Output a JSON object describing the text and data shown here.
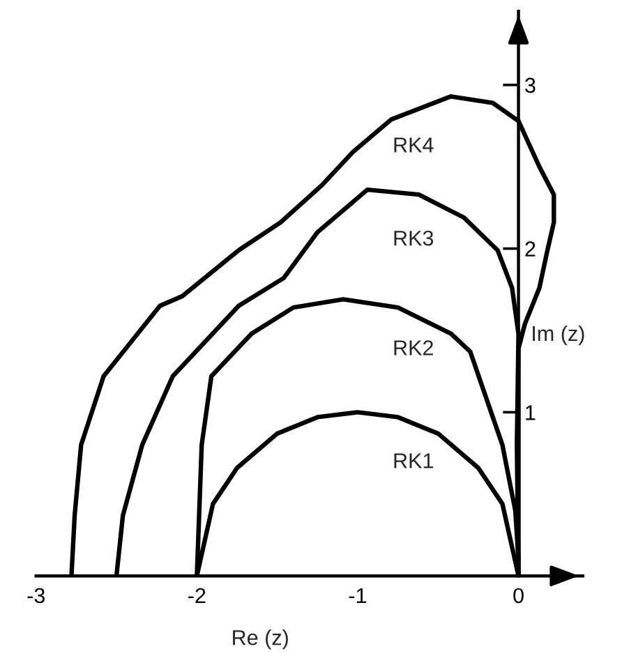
{
  "chart_data": {
    "type": "line",
    "xlabel": "Re (z)",
    "ylabel": "Im (z)",
    "xlim": [
      -3,
      0.4
    ],
    "ylim": [
      0,
      3.45
    ],
    "xticks": [
      -3,
      -2,
      -1,
      0
    ],
    "yticks": [
      1,
      2,
      3
    ],
    "grid": false,
    "legend": false,
    "marker": "none",
    "line_style": "solid",
    "series": [
      {
        "name": "RK1",
        "color": "#000000",
        "x": [
          -2,
          -1.9,
          -1.75,
          -1.5,
          -1.25,
          -1,
          -0.75,
          -0.5,
          -0.25,
          -0.1,
          0
        ],
        "values": [
          0,
          0.44,
          0.66,
          0.87,
          0.97,
          1.0,
          0.97,
          0.87,
          0.66,
          0.44,
          0
        ]
      },
      {
        "name": "RK2",
        "color": "#000000",
        "x": [
          -2,
          -1.97,
          -1.91,
          -1.66,
          -1.4,
          -1.09,
          -0.75,
          -0.42,
          -0.3,
          -0.1,
          -0.02,
          0
        ],
        "values": [
          0,
          0.8,
          1.22,
          1.48,
          1.64,
          1.69,
          1.64,
          1.48,
          1.37,
          0.8,
          0.4,
          0.1
        ]
      },
      {
        "name": "RK3",
        "color": "#000000",
        "x": [
          -2.5,
          -2.46,
          -2.34,
          -2.15,
          -1.74,
          -1.46,
          -1.25,
          -0.94,
          -0.62,
          -0.34,
          -0.13,
          -0.04,
          0,
          -0.01,
          0
        ],
        "values": [
          0,
          0.37,
          0.8,
          1.22,
          1.65,
          1.82,
          2.1,
          2.36,
          2.33,
          2.19,
          1.99,
          1.76,
          1.48,
          0.8,
          0
        ]
      },
      {
        "name": "RK4",
        "color": "#000000",
        "x": [
          -2.78,
          -2.76,
          -2.72,
          -2.58,
          -2.23,
          -2.09,
          -1.74,
          -1.48,
          -1.22,
          -1.03,
          -0.79,
          -0.42,
          -0.16,
          0,
          0.13,
          0.22,
          0.22,
          0.18,
          0.13,
          0.04,
          0,
          0
        ],
        "values": [
          0,
          0.37,
          0.8,
          1.22,
          1.65,
          1.71,
          1.99,
          2.16,
          2.39,
          2.59,
          2.79,
          2.93,
          2.89,
          2.78,
          2.5,
          2.33,
          2.16,
          1.99,
          1.76,
          1.54,
          1.39,
          0
        ]
      }
    ]
  }
}
